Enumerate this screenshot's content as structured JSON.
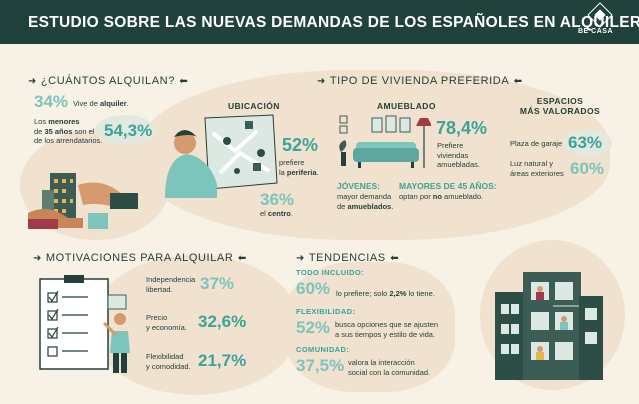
{
  "header": {
    "title": "ESTUDIO SOBRE LAS NUEVAS DEMANDAS DE LOS ESPAÑOLES EN ALQUILER",
    "brand": "BE CASA",
    "brand_color": "#21413c"
  },
  "cuantos": {
    "title": "¿CUÁNTOS ALQUILAN?",
    "stat1_value": "34%",
    "stat1_text_pre": "Vive de ",
    "stat1_text_bold": "alquiler",
    "stat1_text_post": ".",
    "stat2_pre": "Los ",
    "stat2_bold1": "menores",
    "stat2_mid": "de ",
    "stat2_bold2": "35 años",
    "stat2_post": " son el",
    "stat2_line3": "de los arrendatarios.",
    "stat2_value": "54,3%"
  },
  "tipo": {
    "title": "TIPO DE VIVIENDA PREFERIDA",
    "ubicacion": {
      "label": "UBICACIÓN",
      "periferia_value": "52%",
      "periferia_line1": "prefiere",
      "periferia_line2_pre": "la ",
      "periferia_line2_bold": "periferia",
      "periferia_line2_post": ".",
      "centro_value": "36%",
      "centro_pre": "el ",
      "centro_bold": "centro",
      "centro_post": "."
    },
    "amueblado": {
      "label": "AMUEBLADO",
      "value": "78,4%",
      "line1": "Prefiere",
      "line2": "viviendas",
      "line3": "amuebladas.",
      "jovenes_label": "JÓVENES:",
      "jovenes_line1": "mayor demanda",
      "jovenes_line2_pre": "de ",
      "jovenes_line2_bold": "amueblados",
      "jovenes_line2_post": ".",
      "mayores_label": "MAYORES DE 45 AÑOS:",
      "mayores_pre": "optan por ",
      "mayores_bold": "no",
      "mayores_post": " amueblado."
    },
    "espacios": {
      "label_line1": "ESPACIOS",
      "label_line2": "MÁS VALORADOS",
      "item1_label": "Plaza de garaje",
      "item1_value": "63%",
      "item2_line1": "Luz natural y",
      "item2_line2": "áreas exteriores",
      "item2_value": "60%"
    }
  },
  "motivaciones": {
    "title": "MOTIVACIONES PARA ALQUILAR",
    "items": [
      {
        "line1": "Independencia",
        "line2": "libertad.",
        "value": "37%"
      },
      {
        "line1": "Precio",
        "line2": "y economía.",
        "value": "32,6%"
      },
      {
        "line1": "Flexibilidad",
        "line2": "y comodidad.",
        "value": "21,7%"
      }
    ]
  },
  "tendencias": {
    "title": "TENDENCIAS",
    "t1_label": "TODO INCLUIDO:",
    "t1_value": "60%",
    "t1_pre": "lo prefiere; solo ",
    "t1_bold": "2,2%",
    "t1_post": " lo tiene.",
    "t2_label": "FLEXIBILIDAD:",
    "t2_value": "52%",
    "t2_line1": "busca opciones que se ajusten",
    "t2_line2": "a sus tiempos y estilo de vida.",
    "t3_label": "COMUNIDAD:",
    "t3_value": "37,5%",
    "t3_line1": "valora la interacción",
    "t3_line2": "social con la comunidad."
  }
}
